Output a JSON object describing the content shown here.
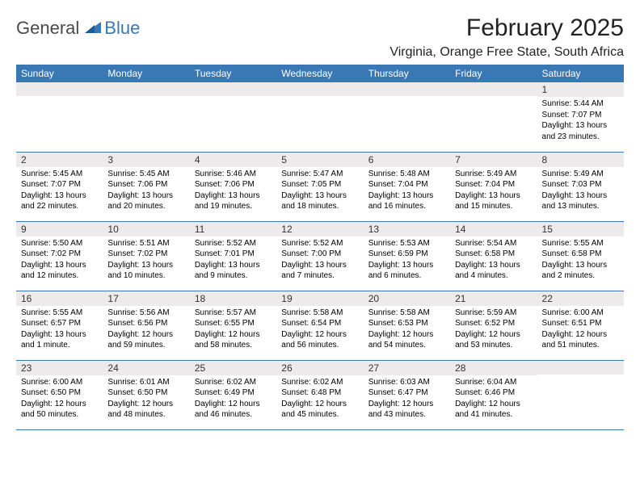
{
  "brand": {
    "part1": "General",
    "part2": "Blue"
  },
  "title": {
    "month": "February 2025",
    "location": "Virginia, Orange Free State, South Africa"
  },
  "colors": {
    "header_bg": "#3a78b5",
    "daynum_bg": "#eceaea",
    "rule": "#3a78b5"
  },
  "weekdays": [
    "Sunday",
    "Monday",
    "Tuesday",
    "Wednesday",
    "Thursday",
    "Friday",
    "Saturday"
  ],
  "weeks": [
    [
      null,
      null,
      null,
      null,
      null,
      null,
      {
        "n": "1",
        "sr": "5:44 AM",
        "ss": "7:07 PM",
        "dl": "13 hours and 23 minutes."
      }
    ],
    [
      {
        "n": "2",
        "sr": "5:45 AM",
        "ss": "7:07 PM",
        "dl": "13 hours and 22 minutes."
      },
      {
        "n": "3",
        "sr": "5:45 AM",
        "ss": "7:06 PM",
        "dl": "13 hours and 20 minutes."
      },
      {
        "n": "4",
        "sr": "5:46 AM",
        "ss": "7:06 PM",
        "dl": "13 hours and 19 minutes."
      },
      {
        "n": "5",
        "sr": "5:47 AM",
        "ss": "7:05 PM",
        "dl": "13 hours and 18 minutes."
      },
      {
        "n": "6",
        "sr": "5:48 AM",
        "ss": "7:04 PM",
        "dl": "13 hours and 16 minutes."
      },
      {
        "n": "7",
        "sr": "5:49 AM",
        "ss": "7:04 PM",
        "dl": "13 hours and 15 minutes."
      },
      {
        "n": "8",
        "sr": "5:49 AM",
        "ss": "7:03 PM",
        "dl": "13 hours and 13 minutes."
      }
    ],
    [
      {
        "n": "9",
        "sr": "5:50 AM",
        "ss": "7:02 PM",
        "dl": "13 hours and 12 minutes."
      },
      {
        "n": "10",
        "sr": "5:51 AM",
        "ss": "7:02 PM",
        "dl": "13 hours and 10 minutes."
      },
      {
        "n": "11",
        "sr": "5:52 AM",
        "ss": "7:01 PM",
        "dl": "13 hours and 9 minutes."
      },
      {
        "n": "12",
        "sr": "5:52 AM",
        "ss": "7:00 PM",
        "dl": "13 hours and 7 minutes."
      },
      {
        "n": "13",
        "sr": "5:53 AM",
        "ss": "6:59 PM",
        "dl": "13 hours and 6 minutes."
      },
      {
        "n": "14",
        "sr": "5:54 AM",
        "ss": "6:58 PM",
        "dl": "13 hours and 4 minutes."
      },
      {
        "n": "15",
        "sr": "5:55 AM",
        "ss": "6:58 PM",
        "dl": "13 hours and 2 minutes."
      }
    ],
    [
      {
        "n": "16",
        "sr": "5:55 AM",
        "ss": "6:57 PM",
        "dl": "13 hours and 1 minute."
      },
      {
        "n": "17",
        "sr": "5:56 AM",
        "ss": "6:56 PM",
        "dl": "12 hours and 59 minutes."
      },
      {
        "n": "18",
        "sr": "5:57 AM",
        "ss": "6:55 PM",
        "dl": "12 hours and 58 minutes."
      },
      {
        "n": "19",
        "sr": "5:58 AM",
        "ss": "6:54 PM",
        "dl": "12 hours and 56 minutes."
      },
      {
        "n": "20",
        "sr": "5:58 AM",
        "ss": "6:53 PM",
        "dl": "12 hours and 54 minutes."
      },
      {
        "n": "21",
        "sr": "5:59 AM",
        "ss": "6:52 PM",
        "dl": "12 hours and 53 minutes."
      },
      {
        "n": "22",
        "sr": "6:00 AM",
        "ss": "6:51 PM",
        "dl": "12 hours and 51 minutes."
      }
    ],
    [
      {
        "n": "23",
        "sr": "6:00 AM",
        "ss": "6:50 PM",
        "dl": "12 hours and 50 minutes."
      },
      {
        "n": "24",
        "sr": "6:01 AM",
        "ss": "6:50 PM",
        "dl": "12 hours and 48 minutes."
      },
      {
        "n": "25",
        "sr": "6:02 AM",
        "ss": "6:49 PM",
        "dl": "12 hours and 46 minutes."
      },
      {
        "n": "26",
        "sr": "6:02 AM",
        "ss": "6:48 PM",
        "dl": "12 hours and 45 minutes."
      },
      {
        "n": "27",
        "sr": "6:03 AM",
        "ss": "6:47 PM",
        "dl": "12 hours and 43 minutes."
      },
      {
        "n": "28",
        "sr": "6:04 AM",
        "ss": "6:46 PM",
        "dl": "12 hours and 41 minutes."
      },
      null
    ]
  ],
  "labels": {
    "sunrise": "Sunrise:",
    "sunset": "Sunset:",
    "daylight": "Daylight:"
  }
}
